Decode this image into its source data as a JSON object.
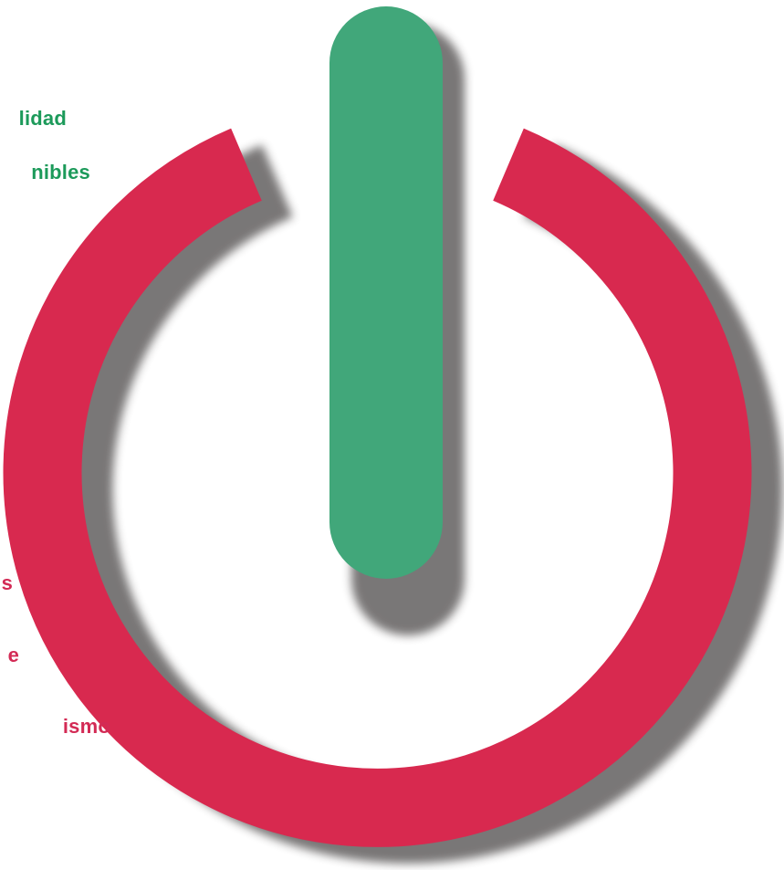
{
  "labels": {
    "green": [
      "lidad",
      "nibles"
    ],
    "red": [
      "s",
      "e",
      "ismo"
    ]
  },
  "colors": {
    "ring": "#d8294f",
    "bar": "#41a77a",
    "shadow": "#727070",
    "label_green": "#1c9a5a",
    "label_red": "#d32a55"
  },
  "graphic": {
    "icon": "power-icon"
  }
}
